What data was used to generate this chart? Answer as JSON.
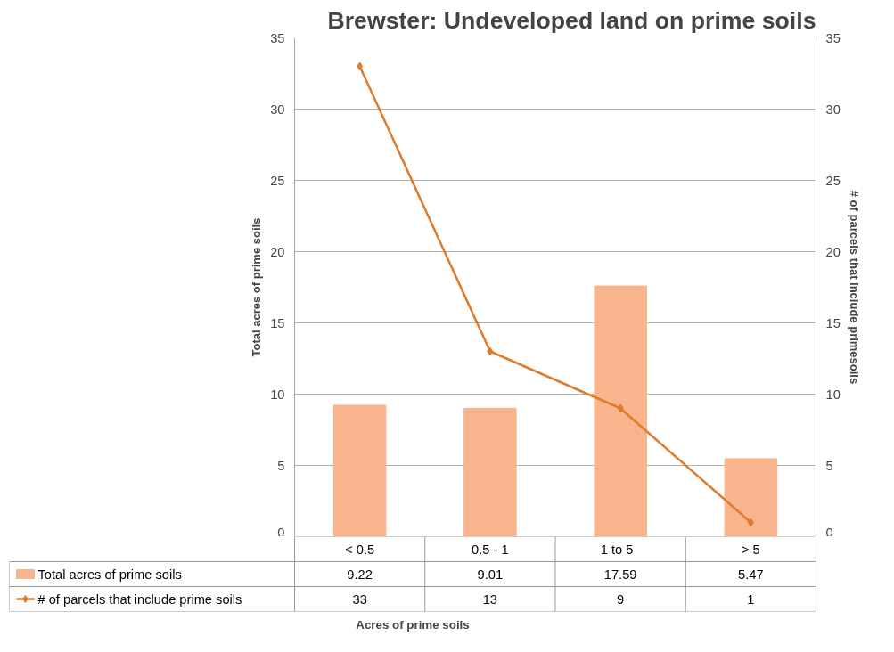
{
  "chart_data": {
    "type": "bar",
    "title": "Brewster: Undeveloped land on prime soils",
    "annotations": [
      "Acres of prime soils"
    ],
    "ylabel": "Total acres of prime soils",
    "y2label": "# of parcels that include primesoils",
    "categories": [
      "< 0.5",
      "0.5 - 1",
      "1  to  5",
      "> 5"
    ],
    "series": [
      {
        "name": "Total acres of prime soils",
        "color": "#f8b48c",
        "values": [
          9.22,
          9.01,
          17.59,
          5.47
        ]
      },
      {
        "name": "# of parcels that include prime soils",
        "type": "line",
        "axis": "y2",
        "color": "#e07b2c",
        "marker": "diamond",
        "values": [
          33,
          13,
          9,
          1
        ]
      }
    ],
    "ylim": [
      0,
      35
    ],
    "yticks": [
      0,
      5,
      10,
      15,
      20,
      25,
      30,
      35
    ],
    "y2lim": [
      0,
      35
    ],
    "y2ticks": [
      0,
      5,
      10,
      15,
      20,
      25,
      30,
      35
    ],
    "grid": "y",
    "legend": "bottom",
    "data_labels": true
  }
}
